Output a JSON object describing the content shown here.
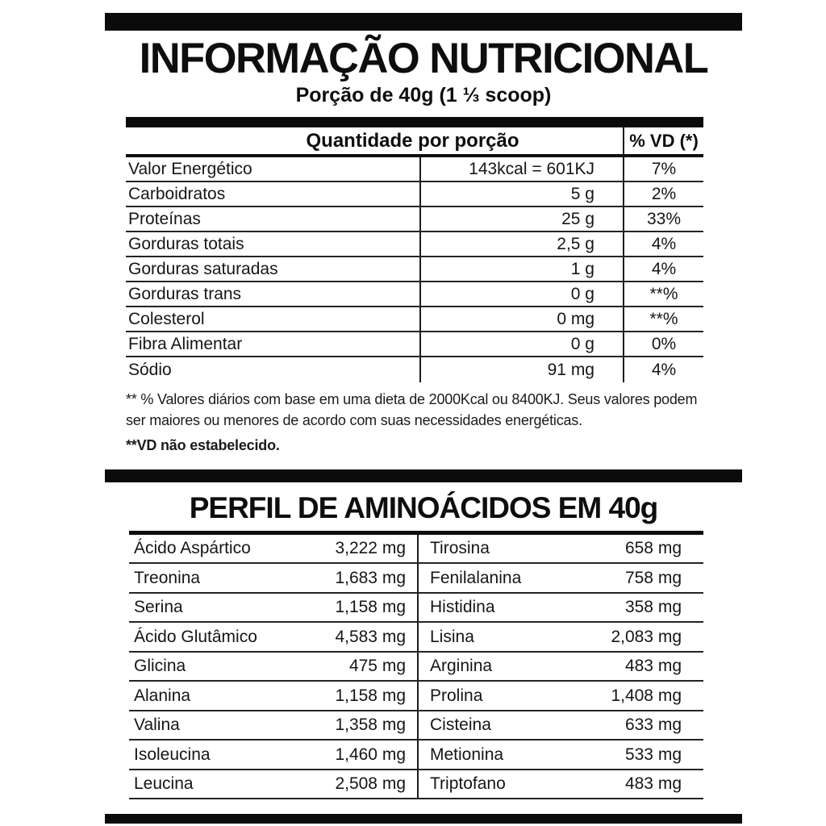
{
  "label": {
    "title": "INFORMAÇÃO NUTRICIONAL",
    "subtitle": "Porção de 40g (1 ⅓ scoop)"
  },
  "nutrition_table": {
    "header_quantity": "Quantidade por porção",
    "header_vd": "% VD (*)",
    "rows": [
      {
        "name": "Valor Energético",
        "amount": "143kcal = 601KJ",
        "vd": "7%"
      },
      {
        "name": "Carboidratos",
        "amount": "5 g",
        "vd": "2%"
      },
      {
        "name": "Proteínas",
        "amount": "25 g",
        "vd": "33%"
      },
      {
        "name": "Gorduras totais",
        "amount": "2,5 g",
        "vd": "4%"
      },
      {
        "name": "Gorduras saturadas",
        "amount": "1 g",
        "vd": "4%"
      },
      {
        "name": "Gorduras trans",
        "amount": "0 g",
        "vd": "**%"
      },
      {
        "name": "Colesterol",
        "amount": "0 mg",
        "vd": "**%"
      },
      {
        "name": "Fibra Alimentar",
        "amount": "0 g",
        "vd": "0%"
      },
      {
        "name": "Sódio",
        "amount": "91 mg",
        "vd": "4%"
      }
    ],
    "footnote_line1": "** % Valores diários com base em uma dieta de 2000Kcal ou 8400KJ. Seus valores podem ser maiores ou menores de acordo com suas necessidades energéticas.",
    "footnote_line2": "**VD não estabelecido."
  },
  "amino_section": {
    "title": "PERFIL DE AMINOÁCIDOS EM 40g",
    "left_rows": [
      {
        "name": "Ácido Aspártico",
        "value": "3,222 mg"
      },
      {
        "name": "Treonina",
        "value": "1,683 mg"
      },
      {
        "name": "Serina",
        "value": "1,158 mg"
      },
      {
        "name": "Ácido Glutâmico",
        "value": "4,583 mg"
      },
      {
        "name": "Glicina",
        "value": "475 mg"
      },
      {
        "name": "Alanina",
        "value": "1,158 mg"
      },
      {
        "name": "Valina",
        "value": "1,358 mg"
      },
      {
        "name": "Isoleucina",
        "value": "1,460 mg"
      },
      {
        "name": "Leucina",
        "value": "2,508 mg"
      }
    ],
    "right_rows": [
      {
        "name": "Tirosina",
        "value": "658 mg"
      },
      {
        "name": "Fenilalanina",
        "value": "758 mg"
      },
      {
        "name": "Histidina",
        "value": "358 mg"
      },
      {
        "name": "Lisina",
        "value": "2,083 mg"
      },
      {
        "name": "Arginina",
        "value": "483 mg"
      },
      {
        "name": "Prolina",
        "value": "1,408 mg"
      },
      {
        "name": "Cisteina",
        "value": "633 mg"
      },
      {
        "name": "Metionina",
        "value": "533 mg"
      },
      {
        "name": "Triptofano",
        "value": "483 mg"
      }
    ]
  },
  "colors": {
    "text": "#161616",
    "background": "#ffffff",
    "bar": "#0b0b0b"
  }
}
